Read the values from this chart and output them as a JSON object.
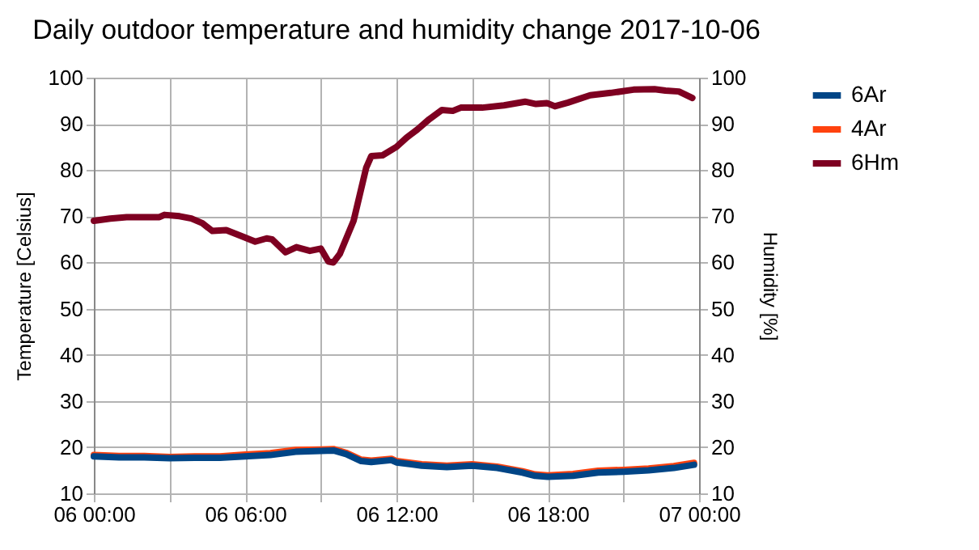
{
  "chart_data": {
    "type": "line",
    "title": "Daily outdoor temperature and humidity change 2017-10-06",
    "xlabel": null,
    "ylabel": "Temperature [Celsius]",
    "y2label": "Humidity [%]",
    "xlim": [
      "2017-10-06T00:00",
      "2017-10-07T00:00"
    ],
    "xticks": [
      {
        "value": "2017-10-06T00:00",
        "label": "06 00:00"
      },
      {
        "value": "2017-10-06T03:00",
        "label": null
      },
      {
        "value": "2017-10-06T06:00",
        "label": "06 06:00"
      },
      {
        "value": "2017-10-06T09:00",
        "label": null
      },
      {
        "value": "2017-10-06T12:00",
        "label": "06 12:00"
      },
      {
        "value": "2017-10-06T15:00",
        "label": null
      },
      {
        "value": "2017-10-06T18:00",
        "label": "06 18:00"
      },
      {
        "value": "2017-10-06T21:00",
        "label": null
      },
      {
        "value": "2017-10-07T00:00",
        "label": "07 00:00"
      }
    ],
    "ylim": [
      10,
      100
    ],
    "yticks": [
      10,
      20,
      30,
      40,
      50,
      60,
      70,
      80,
      90,
      100
    ],
    "y2lim": [
      10,
      100
    ],
    "y2ticks": [
      10,
      20,
      30,
      40,
      50,
      60,
      70,
      80,
      90,
      100
    ],
    "grid": true,
    "legend": "right",
    "marker": "none",
    "line_style": "solid",
    "series": [
      {
        "name": "6Ar",
        "color": "#004586",
        "x": [
          "2017-10-06T00:00",
          "2017-10-06T01:00",
          "2017-10-06T02:00",
          "2017-10-06T03:00",
          "2017-10-06T04:00",
          "2017-10-06T05:00",
          "2017-10-06T06:00",
          "2017-10-06T07:00",
          "2017-10-06T08:00",
          "2017-10-06T09:00",
          "2017-10-06T09:30",
          "2017-10-06T10:00",
          "2017-10-06T10:36",
          "2017-10-06T11:00",
          "2017-10-06T11:48",
          "2017-10-06T12:00",
          "2017-10-06T13:00",
          "2017-10-06T14:00",
          "2017-10-06T15:00",
          "2017-10-06T16:00",
          "2017-10-06T17:00",
          "2017-10-06T17:30",
          "2017-10-06T18:00",
          "2017-10-06T19:00",
          "2017-10-06T20:00",
          "2017-10-06T21:00",
          "2017-10-06T22:00",
          "2017-10-06T23:00",
          "2017-10-06T23:48"
        ],
        "values": [
          18,
          17.8,
          17.8,
          17.6,
          17.7,
          17.7,
          18,
          18.3,
          19,
          19.2,
          19.3,
          18.5,
          17,
          16.8,
          17.2,
          16.7,
          16,
          15.7,
          16,
          15.5,
          14.5,
          13.8,
          13.6,
          13.8,
          14.5,
          14.7,
          15,
          15.5,
          16.2
        ]
      },
      {
        "name": "4Ar",
        "color": "#ff420e",
        "x": [
          "2017-10-06T00:00",
          "2017-10-06T01:00",
          "2017-10-06T02:00",
          "2017-10-06T03:00",
          "2017-10-06T04:00",
          "2017-10-06T05:00",
          "2017-10-06T06:00",
          "2017-10-06T07:00",
          "2017-10-06T08:00",
          "2017-10-06T09:00",
          "2017-10-06T09:30",
          "2017-10-06T10:00",
          "2017-10-06T10:36",
          "2017-10-06T11:00",
          "2017-10-06T11:48",
          "2017-10-06T12:00",
          "2017-10-06T13:00",
          "2017-10-06T14:00",
          "2017-10-06T15:00",
          "2017-10-06T16:00",
          "2017-10-06T17:00",
          "2017-10-06T17:30",
          "2017-10-06T18:00",
          "2017-10-06T19:00",
          "2017-10-06T20:00",
          "2017-10-06T21:00",
          "2017-10-06T22:00",
          "2017-10-06T23:00",
          "2017-10-06T23:48"
        ],
        "values": [
          18.3,
          18.1,
          18.1,
          17.9,
          18,
          18,
          18.4,
          18.7,
          19.4,
          19.5,
          19.6,
          18.8,
          17.3,
          17.1,
          17.5,
          17,
          16.3,
          16,
          16.3,
          15.8,
          14.8,
          14.1,
          13.9,
          14.2,
          14.9,
          15.1,
          15.4,
          15.9,
          16.6
        ]
      },
      {
        "name": "6Hm",
        "color": "#7e0021",
        "axis": "y2",
        "x": [
          "2017-10-06T00:00",
          "2017-10-06T00:39",
          "2017-10-06T01:18",
          "2017-10-06T02:36",
          "2017-10-06T02:48",
          "2017-10-06T03:24",
          "2017-10-06T03:52",
          "2017-10-06T04:18",
          "2017-10-06T04:42",
          "2017-10-06T05:15",
          "2017-10-06T05:48",
          "2017-10-06T06:24",
          "2017-10-06T06:51",
          "2017-10-06T07:04",
          "2017-10-06T07:36",
          "2017-10-06T08:02",
          "2017-10-06T08:34",
          "2017-10-06T09:00",
          "2017-10-06T09:18",
          "2017-10-06T09:30",
          "2017-10-06T09:45",
          "2017-10-06T10:18",
          "2017-10-06T10:48",
          "2017-10-06T11:00",
          "2017-10-06T11:27",
          "2017-10-06T12:00",
          "2017-10-06T12:24",
          "2017-10-06T12:50",
          "2017-10-06T13:18",
          "2017-10-06T13:48",
          "2017-10-06T14:14",
          "2017-10-06T14:33",
          "2017-10-06T15:24",
          "2017-10-06T16:16",
          "2017-10-06T17:06",
          "2017-10-06T17:32",
          "2017-10-06T17:58",
          "2017-10-06T18:17",
          "2017-10-06T18:48",
          "2017-10-06T19:41",
          "2017-10-06T20:30",
          "2017-10-06T21:24",
          "2017-10-06T22:14",
          "2017-10-06T22:40",
          "2017-10-06T23:12",
          "2017-10-06T23:44"
        ],
        "values": [
          69,
          69.5,
          69.8,
          69.8,
          70.3,
          70,
          69.5,
          68.5,
          66.8,
          67,
          65.8,
          64.5,
          65.2,
          65,
          62.2,
          63.3,
          62.5,
          63,
          60.2,
          60,
          61.8,
          69,
          80.5,
          83,
          83.2,
          85,
          87,
          88.8,
          91,
          93,
          92.8,
          93.5,
          93.5,
          94,
          94.8,
          94.3,
          94.5,
          93.8,
          94.6,
          96.2,
          96.7,
          97.4,
          97.5,
          97.2,
          97,
          95.6
        ]
      }
    ]
  }
}
